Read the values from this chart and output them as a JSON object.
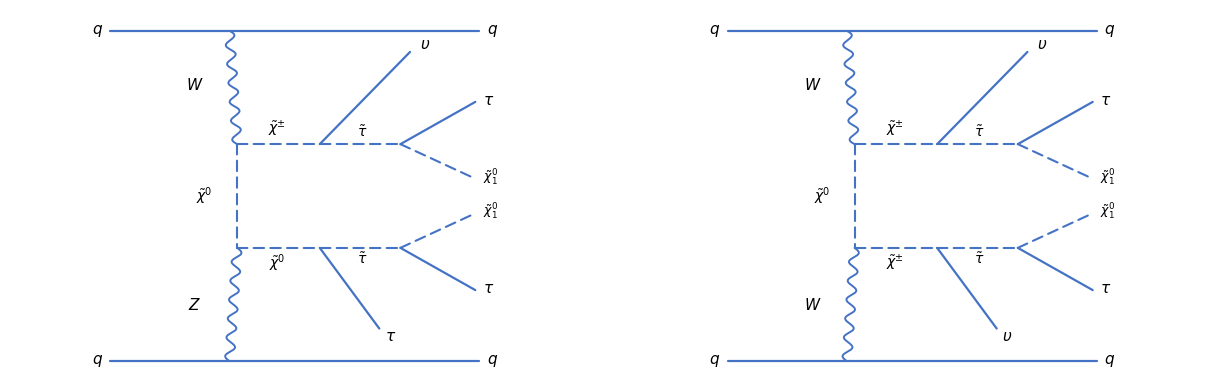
{
  "line_color": "#4472C4",
  "bg_color": "#ffffff",
  "figsize": [
    12.3,
    3.92
  ],
  "dpi": 100,
  "lw_quark": 1.6,
  "lw_boson": 1.4,
  "lw_dashed": 1.5,
  "lw_solid": 1.6,
  "fontsize_label": 11,
  "fontsize_particle": 10,
  "fontsize_chi1": 9
}
